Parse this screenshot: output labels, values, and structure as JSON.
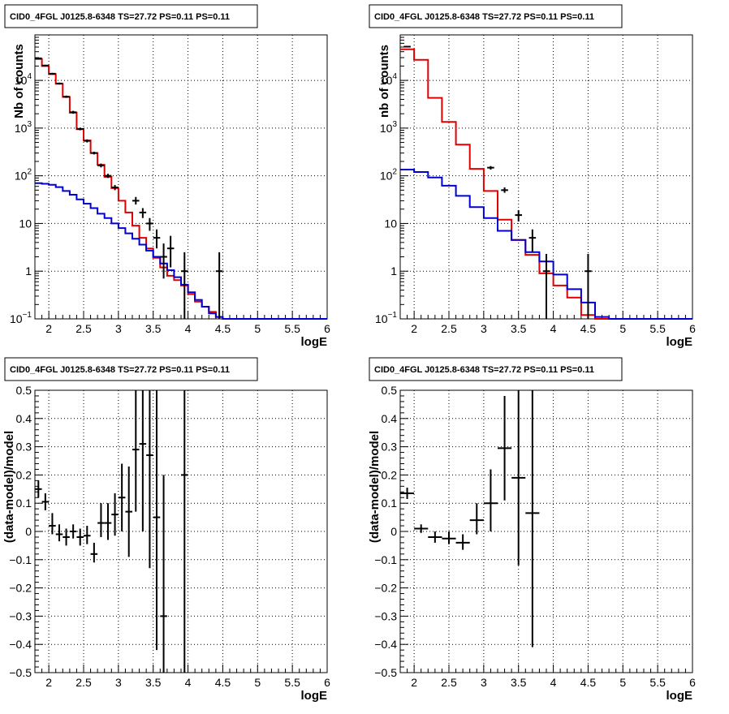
{
  "chart_data": [
    {
      "type": "line",
      "panel": "top-left",
      "title": "CID0_4FGL J0125.8-6348 TS=27.72 PS=0.11 PS=0.11",
      "xlabel": "logE",
      "ylabel": "Nb of counts",
      "xlim": [
        1.8,
        6
      ],
      "ylim": [
        0.1,
        90000
      ],
      "yscale": "log",
      "grid": true,
      "xticks": [
        "2",
        "2.5",
        "3",
        "3.5",
        "4",
        "4.5",
        "5",
        "5.5",
        "6"
      ],
      "yticks": [
        {
          "value": 0.1,
          "label": "10",
          "sup": "−1"
        },
        {
          "value": 1,
          "label": "1",
          "sup": ""
        },
        {
          "value": 10,
          "label": "10",
          "sup": ""
        },
        {
          "value": 100,
          "label": "10",
          "sup": "2"
        },
        {
          "value": 1000,
          "label": "10",
          "sup": "3"
        },
        {
          "value": 10000,
          "label": "10",
          "sup": "4"
        }
      ],
      "series": [
        {
          "color": "#e00000",
          "kind": "step",
          "edges": [
            1.8,
            1.9,
            2.0,
            2.1,
            2.2,
            2.3,
            2.4,
            2.5,
            2.6,
            2.7,
            2.8,
            2.9,
            3.0,
            3.1,
            3.2,
            3.3,
            3.4,
            3.5,
            3.6,
            3.7,
            3.8,
            3.9,
            4.0,
            4.1,
            4.2,
            4.3,
            4.4,
            4.5,
            4.6
          ],
          "values": [
            28000,
            20000,
            13500,
            8500,
            4500,
            2100,
            950,
            550,
            300,
            170,
            95,
            55,
            30,
            17,
            9,
            5,
            3,
            1.9,
            1.2,
            0.8,
            0.65,
            0.5,
            0.33,
            0.23,
            0.18,
            0.14,
            0.11,
            0.1
          ]
        },
        {
          "color": "#0000d0",
          "kind": "step",
          "edges": [
            1.8,
            1.9,
            2.0,
            2.1,
            2.2,
            2.3,
            2.4,
            2.5,
            2.6,
            2.7,
            2.8,
            2.9,
            3.0,
            3.1,
            3.2,
            3.3,
            3.4,
            3.5,
            3.6,
            3.7,
            3.8,
            3.9,
            4.0,
            4.1,
            4.2,
            4.3,
            4.4,
            4.5,
            4.6,
            6.0
          ],
          "values": [
            70,
            68,
            65,
            58,
            48,
            40,
            32,
            26,
            21,
            16,
            13,
            10,
            8,
            6.2,
            4.8,
            3.6,
            2.7,
            2.0,
            1.45,
            1.05,
            0.75,
            0.52,
            0.36,
            0.25,
            0.18,
            0.13,
            0.11,
            0.1,
            0.1
          ]
        },
        {
          "color": "#000000",
          "kind": "points",
          "points": [
            {
              "x": 1.85,
              "y": 29000,
              "lo": 28000,
              "hi": 30000
            },
            {
              "x": 1.95,
              "y": 20500,
              "lo": 19800,
              "hi": 21200
            },
            {
              "x": 2.05,
              "y": 13800,
              "lo": 13200,
              "hi": 14400
            },
            {
              "x": 2.15,
              "y": 8600,
              "lo": 8200,
              "hi": 9000
            },
            {
              "x": 2.25,
              "y": 4550,
              "lo": 4300,
              "hi": 4800
            },
            {
              "x": 2.35,
              "y": 2150,
              "lo": 2000,
              "hi": 2300
            },
            {
              "x": 2.45,
              "y": 960,
              "lo": 900,
              "hi": 1020
            },
            {
              "x": 2.55,
              "y": 540,
              "lo": 500,
              "hi": 580
            },
            {
              "x": 2.65,
              "y": 300,
              "lo": 280,
              "hi": 320
            },
            {
              "x": 2.75,
              "y": 165,
              "lo": 150,
              "hi": 180
            },
            {
              "x": 2.85,
              "y": 100,
              "lo": 90,
              "hi": 110
            },
            {
              "x": 2.95,
              "y": 57,
              "lo": 50,
              "hi": 64
            },
            {
              "x": 3.25,
              "y": 30,
              "lo": 25,
              "hi": 36
            },
            {
              "x": 3.35,
              "y": 17,
              "lo": 13,
              "hi": 21
            },
            {
              "x": 3.45,
              "y": 10,
              "lo": 7,
              "hi": 13
            },
            {
              "x": 3.55,
              "y": 5,
              "lo": 3,
              "hi": 7.5
            },
            {
              "x": 3.65,
              "y": 2,
              "lo": 0.7,
              "hi": 3.8
            },
            {
              "x": 3.75,
              "y": 3,
              "lo": 1.2,
              "hi": 5.5
            },
            {
              "x": 3.95,
              "y": 1,
              "lo": 0.1,
              "hi": 2.5
            },
            {
              "x": 4.45,
              "y": 1,
              "lo": 0.1,
              "hi": 2.5
            }
          ]
        }
      ]
    },
    {
      "type": "line",
      "panel": "top-right",
      "title": "CID0_4FGL J0125.8-6348 TS=27.72 PS=0.11 PS=0.11",
      "xlabel": "logE",
      "ylabel": "nb of counts",
      "xlim": [
        1.8,
        6
      ],
      "ylim": [
        0.1,
        90000
      ],
      "yscale": "log",
      "grid": true,
      "xticks": [
        "2",
        "2.5",
        "3",
        "3.5",
        "4",
        "4.5",
        "5",
        "5.5",
        "6"
      ],
      "yticks": [
        {
          "value": 0.1,
          "label": "10",
          "sup": "−1"
        },
        {
          "value": 1,
          "label": "1",
          "sup": ""
        },
        {
          "value": 10,
          "label": "10",
          "sup": ""
        },
        {
          "value": 100,
          "label": "10",
          "sup": "2"
        },
        {
          "value": 1000,
          "label": "10",
          "sup": "3"
        },
        {
          "value": 10000,
          "label": "10",
          "sup": "4"
        }
      ],
      "series": [
        {
          "color": "#e00000",
          "kind": "step",
          "edges": [
            1.8,
            2.0,
            2.2,
            2.4,
            2.6,
            2.8,
            3.0,
            3.2,
            3.4,
            3.6,
            3.8,
            4.0,
            4.2,
            4.4,
            4.6,
            4.8
          ],
          "values": [
            45000,
            27000,
            4300,
            1350,
            450,
            140,
            48,
            12,
            4.5,
            2.2,
            0.9,
            0.5,
            0.28,
            0.12,
            0.1
          ]
        },
        {
          "color": "#0000d0",
          "kind": "step",
          "edges": [
            1.8,
            2.0,
            2.2,
            2.4,
            2.6,
            2.8,
            3.0,
            3.2,
            3.4,
            3.6,
            3.8,
            4.0,
            4.2,
            4.4,
            4.6,
            4.8,
            6.0
          ],
          "values": [
            135,
            120,
            92,
            62,
            38,
            22,
            13,
            7,
            4.5,
            2.5,
            1.6,
            0.85,
            0.42,
            0.22,
            0.11,
            0.1
          ]
        },
        {
          "color": "#000000",
          "kind": "points",
          "points": [
            {
              "x": 1.9,
              "y": 51000,
              "lo": 49500,
              "hi": 52500
            },
            {
              "x": 3.1,
              "y": 148,
              "lo": 135,
              "hi": 160
            },
            {
              "x": 3.3,
              "y": 50,
              "lo": 44,
              "hi": 57
            },
            {
              "x": 3.5,
              "y": 15,
              "lo": 11,
              "hi": 19
            },
            {
              "x": 3.7,
              "y": 5,
              "lo": 2.5,
              "hi": 7.5
            },
            {
              "x": 3.9,
              "y": 1,
              "lo": 0.1,
              "hi": 2.3
            },
            {
              "x": 4.5,
              "y": 1,
              "lo": 0.1,
              "hi": 2.3
            }
          ]
        }
      ]
    },
    {
      "type": "scatter",
      "panel": "bottom-left",
      "title": "CID0_4FGL J0125.8-6348 TS=27.72 PS=0.11 PS=0.11",
      "xlabel": "logE",
      "ylabel": "(data-model)/model",
      "xlim": [
        1.8,
        6
      ],
      "ylim": [
        -0.5,
        0.5
      ],
      "yscale": "linear",
      "grid": true,
      "xticks": [
        "2",
        "2.5",
        "3",
        "3.5",
        "4",
        "4.5",
        "5",
        "5.5",
        "6"
      ],
      "yticks": [
        "−0.5",
        "−0.4",
        "−0.3",
        "−0.2",
        "−0.1",
        "0",
        "0.1",
        "0.2",
        "0.3",
        "0.4",
        "0.5"
      ],
      "series": [
        {
          "color": "#000000",
          "kind": "points",
          "xerr": 0.05,
          "points": [
            {
              "x": 1.85,
              "y": 0.15,
              "lo": 0.12,
              "hi": 0.18
            },
            {
              "x": 1.95,
              "y": 0.105,
              "lo": 0.075,
              "hi": 0.135
            },
            {
              "x": 2.05,
              "y": 0.02,
              "lo": -0.01,
              "hi": 0.065
            },
            {
              "x": 2.15,
              "y": -0.01,
              "lo": -0.035,
              "hi": 0.025
            },
            {
              "x": 2.25,
              "y": -0.02,
              "lo": -0.05,
              "hi": 0.01
            },
            {
              "x": 2.35,
              "y": 0.0,
              "lo": -0.025,
              "hi": 0.025
            },
            {
              "x": 2.45,
              "y": -0.02,
              "lo": -0.05,
              "hi": 0.01
            },
            {
              "x": 2.55,
              "y": -0.015,
              "lo": -0.045,
              "hi": 0.02
            },
            {
              "x": 2.65,
              "y": -0.08,
              "lo": -0.11,
              "hi": -0.04
            },
            {
              "x": 2.75,
              "y": 0.03,
              "lo": -0.02,
              "hi": 0.1
            },
            {
              "x": 2.85,
              "y": 0.03,
              "lo": -0.03,
              "hi": 0.1
            },
            {
              "x": 2.95,
              "y": 0.06,
              "lo": -0.015,
              "hi": 0.135
            },
            {
              "x": 3.05,
              "y": 0.12,
              "lo": 0.0,
              "hi": 0.24
            },
            {
              "x": 3.15,
              "y": 0.07,
              "lo": -0.09,
              "hi": 0.23
            },
            {
              "x": 3.25,
              "y": 0.29,
              "lo": 0.07,
              "hi": 0.5
            },
            {
              "x": 3.35,
              "y": 0.31,
              "lo": 0.0,
              "hi": 0.5
            },
            {
              "x": 3.45,
              "y": 0.27,
              "lo": -0.13,
              "hi": 0.5
            },
            {
              "x": 3.55,
              "y": 0.05,
              "lo": -0.42,
              "hi": 0.5
            },
            {
              "x": 3.65,
              "y": -0.3,
              "lo": -0.5,
              "hi": 0.2
            },
            {
              "x": 3.95,
              "y": 0.2,
              "lo": -0.5,
              "hi": 0.5
            }
          ]
        }
      ]
    },
    {
      "type": "scatter",
      "panel": "bottom-right",
      "title": "CID0_4FGL J0125.8-6348 TS=27.72 PS=0.11 PS=0.11",
      "xlabel": "logE",
      "ylabel": "(data-model)/model",
      "xlim": [
        1.8,
        6
      ],
      "ylim": [
        -0.5,
        0.5
      ],
      "yscale": "linear",
      "grid": true,
      "xticks": [
        "2",
        "2.5",
        "3",
        "3.5",
        "4",
        "4.5",
        "5",
        "5.5",
        "6"
      ],
      "yticks": [
        "−0.5",
        "−0.4",
        "−0.3",
        "−0.2",
        "−0.1",
        "0",
        "0.1",
        "0.2",
        "0.3",
        "0.4",
        "0.5"
      ],
      "series": [
        {
          "color": "#000000",
          "kind": "points",
          "xerr": 0.1,
          "points": [
            {
              "x": 1.9,
              "y": 0.135,
              "lo": 0.115,
              "hi": 0.155
            },
            {
              "x": 2.1,
              "y": 0.01,
              "lo": -0.005,
              "hi": 0.025
            },
            {
              "x": 2.3,
              "y": -0.02,
              "lo": -0.04,
              "hi": 0.0
            },
            {
              "x": 2.5,
              "y": -0.025,
              "lo": -0.045,
              "hi": 0.0
            },
            {
              "x": 2.7,
              "y": -0.04,
              "lo": -0.065,
              "hi": -0.01
            },
            {
              "x": 2.9,
              "y": 0.04,
              "lo": -0.01,
              "hi": 0.1
            },
            {
              "x": 3.1,
              "y": 0.1,
              "lo": 0.0,
              "hi": 0.22
            },
            {
              "x": 3.3,
              "y": 0.295,
              "lo": 0.11,
              "hi": 0.48
            },
            {
              "x": 3.5,
              "y": 0.19,
              "lo": -0.12,
              "hi": 0.5
            },
            {
              "x": 3.7,
              "y": 0.065,
              "lo": -0.41,
              "hi": 0.5
            }
          ]
        }
      ]
    }
  ]
}
